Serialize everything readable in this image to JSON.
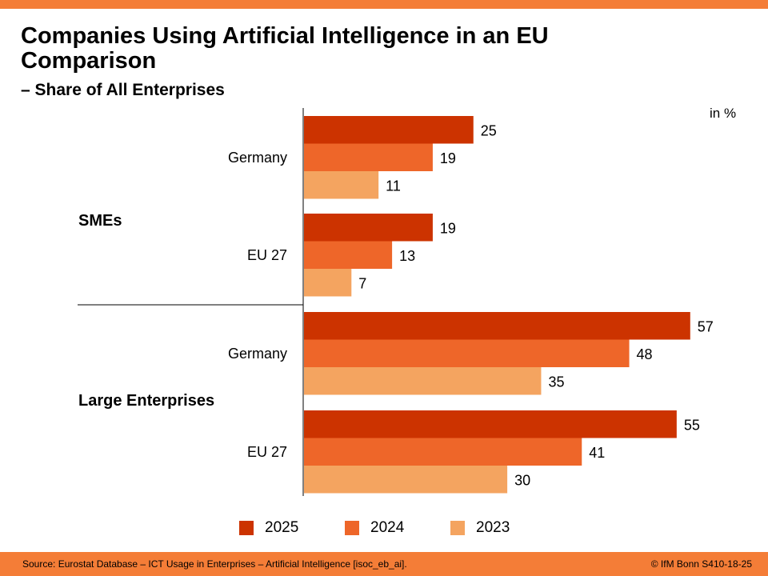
{
  "header": {
    "title": "Companies Using Artificial Intelligence in an EU Comparison",
    "subtitle": "– Share of All Enterprises",
    "unit": "in %"
  },
  "footer": {
    "source": "Source: Eurostat Database – ICT Usage in Enterprises – Artificial Intelligence [isoc_eb_ai].",
    "copyright": "© IfM Bonn  S410-18-25"
  },
  "colors": {
    "accent_bar": "#f47d37",
    "2025": "#cc3300",
    "2024": "#ee6629",
    "2023": "#f4a460"
  },
  "chart_data": {
    "type": "bar",
    "orientation": "horizontal",
    "title": "Companies Using Artificial Intelligence in an EU Comparison – Share of All Enterprises",
    "xlabel": "in %",
    "ylabel": "",
    "xlim": [
      0,
      60
    ],
    "grid": false,
    "legend_position": "bottom",
    "groups": [
      {
        "label": "SMEs",
        "categories": [
          {
            "label": "Germany",
            "values": {
              "2025": 25,
              "2024": 19,
              "2023": 11
            }
          },
          {
            "label": "EU 27",
            "values": {
              "2025": 19,
              "2024": 13,
              "2023": 7
            }
          }
        ]
      },
      {
        "label": "Large Enterprises",
        "categories": [
          {
            "label": "Germany",
            "values": {
              "2025": 57,
              "2024": 48,
              "2023": 35
            }
          },
          {
            "label": "EU 27",
            "values": {
              "2025": 55,
              "2024": 41,
              "2023": 30
            }
          }
        ]
      }
    ],
    "series": [
      {
        "name": "2025",
        "values": [
          25,
          19,
          57,
          55
        ]
      },
      {
        "name": "2024",
        "values": [
          19,
          13,
          48,
          41
        ]
      },
      {
        "name": "2023",
        "values": [
          11,
          7,
          35,
          30
        ]
      }
    ],
    "legend": [
      "2025",
      "2024",
      "2023"
    ]
  }
}
